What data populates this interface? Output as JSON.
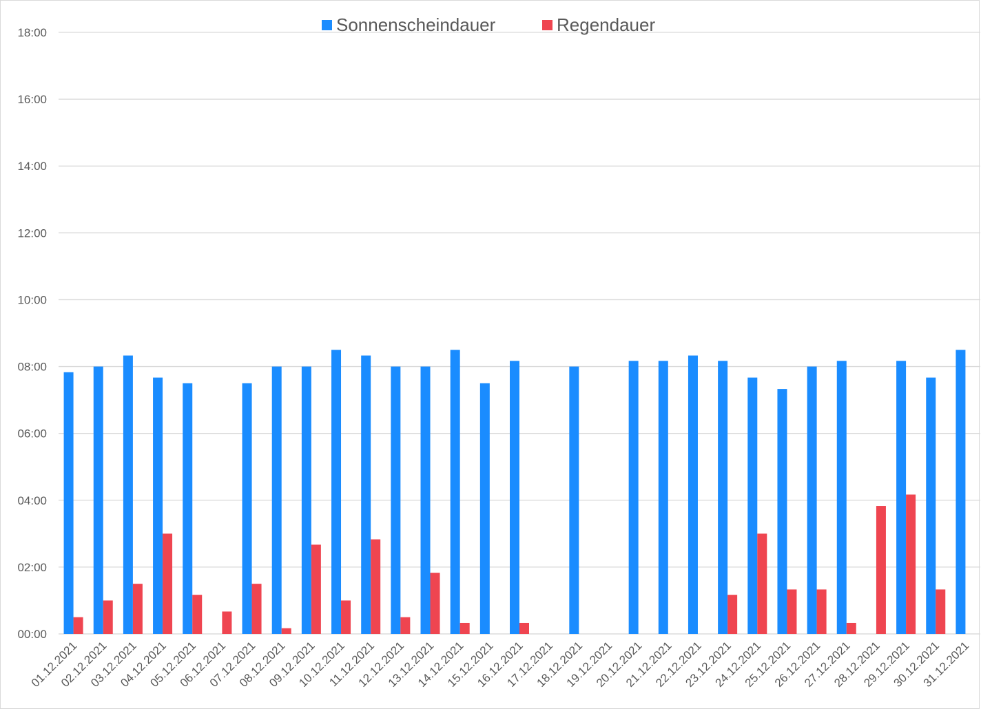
{
  "chart_data": {
    "type": "bar",
    "title": "",
    "xlabel": "",
    "ylabel": "",
    "y_unit": "hours (tick labels HH:MM)",
    "ylim": [
      0,
      18
    ],
    "y_ticks": [
      "00:00",
      "02:00",
      "04:00",
      "06:00",
      "08:00",
      "10:00",
      "12:00",
      "14:00",
      "16:00",
      "18:00"
    ],
    "grid": "horizontal",
    "legend_position": "top-center",
    "categories": [
      "01.12.2021",
      "02.12.2021",
      "03.12.2021",
      "04.12.2021",
      "05.12.2021",
      "06.12.2021",
      "07.12.2021",
      "08.12.2021",
      "09.12.2021",
      "10.12.2021",
      "11.12.2021",
      "12.12.2021",
      "13.12.2021",
      "14.12.2021",
      "15.12.2021",
      "16.12.2021",
      "17.12.2021",
      "18.12.2021",
      "19.12.2021",
      "20.12.2021",
      "21.12.2021",
      "22.12.2021",
      "23.12.2021",
      "24.12.2021",
      "25.12.2021",
      "26.12.2021",
      "27.12.2021",
      "28.12.2021",
      "29.12.2021",
      "30.12.2021",
      "31.12.2021"
    ],
    "series": [
      {
        "name": "Sonnenscheindauer",
        "color": "#1a8cff",
        "values": [
          7.83,
          8.0,
          8.33,
          7.67,
          7.5,
          0,
          7.5,
          8.0,
          8.0,
          8.5,
          8.33,
          8.0,
          8.0,
          8.5,
          7.5,
          8.17,
          0,
          8.0,
          0,
          8.17,
          8.17,
          8.33,
          8.17,
          7.67,
          7.33,
          8.0,
          8.17,
          0,
          8.17,
          7.67,
          8.5
        ]
      },
      {
        "name": "Regendauer",
        "color": "#ef4550",
        "values": [
          0.5,
          1.0,
          1.5,
          3.0,
          1.17,
          0.67,
          1.5,
          0.17,
          2.67,
          1.0,
          2.83,
          0.5,
          1.83,
          0.33,
          0,
          0.33,
          0,
          0,
          0,
          0,
          0,
          0,
          1.17,
          3.0,
          1.33,
          1.33,
          0.33,
          3.83,
          4.17,
          1.33,
          0
        ]
      }
    ]
  }
}
